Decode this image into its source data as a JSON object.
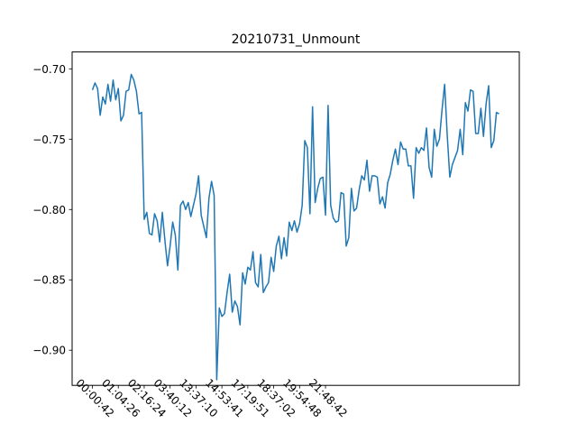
{
  "chart_data": {
    "type": "line",
    "title": "20210731_Unmount",
    "xlabel": "",
    "ylabel": "",
    "ylim": [
      -0.925,
      -0.688
    ],
    "yticks": [
      -0.7,
      -0.75,
      -0.8,
      -0.85,
      -0.9
    ],
    "ytick_labels": [
      "−0.70",
      "−0.75",
      "−0.80",
      "−0.85",
      "−0.90"
    ],
    "xtick_indices": [
      0,
      10,
      20,
      30,
      40,
      50,
      60,
      70,
      80,
      90
    ],
    "xtick_labels": [
      "00:00:42",
      "01:04:26",
      "02:16:24",
      "03:40:12",
      "13:37:10",
      "14:53:41",
      "17:19:51",
      "18:37:02",
      "19:54:48",
      "21:48:42"
    ],
    "xtick_rotation": -45,
    "grid": false,
    "line_color": "#1f77b4",
    "series": [
      {
        "values": [
          -0.715,
          -0.71,
          -0.714,
          -0.733,
          -0.72,
          -0.725,
          -0.711,
          -0.723,
          -0.708,
          -0.722,
          -0.714,
          -0.737,
          -0.733,
          -0.716,
          -0.715,
          -0.704,
          -0.708,
          -0.716,
          -0.732,
          -0.731,
          -0.807,
          -0.802,
          -0.817,
          -0.818,
          -0.803,
          -0.808,
          -0.823,
          -0.802,
          -0.822,
          -0.84,
          -0.826,
          -0.809,
          -0.818,
          -0.843,
          -0.797,
          -0.794,
          -0.8,
          -0.795,
          -0.805,
          -0.797,
          -0.789,
          -0.776,
          -0.804,
          -0.812,
          -0.82,
          -0.792,
          -0.78,
          -0.79,
          -0.921,
          -0.87,
          -0.876,
          -0.874,
          -0.859,
          -0.846,
          -0.873,
          -0.865,
          -0.869,
          -0.882,
          -0.845,
          -0.853,
          -0.841,
          -0.843,
          -0.83,
          -0.852,
          -0.855,
          -0.832,
          -0.859,
          -0.855,
          -0.852,
          -0.834,
          -0.844,
          -0.826,
          -0.819,
          -0.835,
          -0.82,
          -0.833,
          -0.809,
          -0.815,
          -0.808,
          -0.816,
          -0.81,
          -0.797,
          -0.751,
          -0.756,
          -0.803,
          -0.727,
          -0.795,
          -0.785,
          -0.778,
          -0.777,
          -0.804,
          -0.726,
          -0.797,
          -0.806,
          -0.809,
          -0.808,
          -0.788,
          -0.789,
          -0.826,
          -0.82,
          -0.785,
          -0.801,
          -0.799,
          -0.786,
          -0.776,
          -0.779,
          -0.765,
          -0.787,
          -0.776,
          -0.776,
          -0.777,
          -0.796,
          -0.791,
          -0.799,
          -0.781,
          -0.775,
          -0.765,
          -0.757,
          -0.768,
          -0.752,
          -0.757,
          -0.757,
          -0.769,
          -0.769,
          -0.792,
          -0.756,
          -0.76,
          -0.756,
          -0.758,
          -0.742,
          -0.77,
          -0.777,
          -0.743,
          -0.755,
          -0.75,
          -0.729,
          -0.711,
          -0.747,
          -0.777,
          -0.768,
          -0.763,
          -0.758,
          -0.743,
          -0.761,
          -0.724,
          -0.73,
          -0.715,
          -0.716,
          -0.746,
          -0.746,
          -0.728,
          -0.748,
          -0.725,
          -0.712,
          -0.756,
          -0.751,
          -0.731,
          -0.732
        ]
      }
    ]
  }
}
